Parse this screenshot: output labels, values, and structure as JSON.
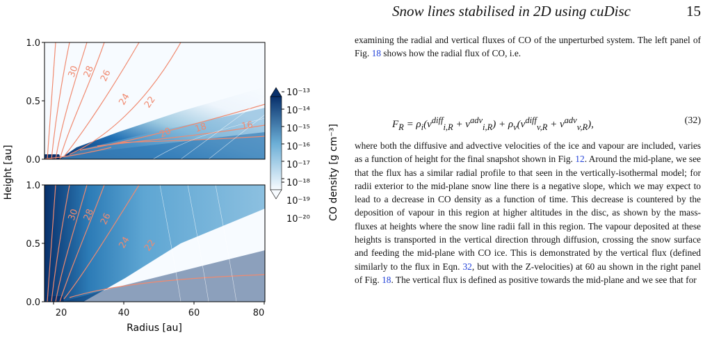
{
  "header": {
    "title": "Snow lines stabilised in 2D using cuDisc",
    "page_number": "15"
  },
  "figure": {
    "x_label": "Radius [au]",
    "y_label": "Height [au]",
    "colorbar_label": "CO density [g cm⁻³]",
    "x_ticks": [
      "20",
      "40",
      "60",
      "80"
    ],
    "top_y_ticks": [
      "0.0",
      "0.5",
      "1.0"
    ],
    "bottom_y_ticks": [
      "0.0",
      "0.5",
      "1.0"
    ],
    "colorbar_ticks": [
      "10⁻¹³",
      "10⁻¹⁴",
      "10⁻¹⁵",
      "10⁻¹⁶",
      "10⁻¹⁷",
      "10⁻¹⁸",
      "10⁻¹⁹",
      "10⁻²⁰"
    ],
    "top_contour_labels": [
      "30",
      "28",
      "26",
      "24",
      "22",
      "20",
      "18",
      "16"
    ],
    "bottom_contour_labels": [
      "30",
      "28",
      "26",
      "24",
      "22"
    ],
    "colors": {
      "dark": "#08306b",
      "mid": "#4292c6",
      "light": "#f7fbff",
      "contour": "#f08a70"
    }
  },
  "body": {
    "para1": "examining the radial and vertical fluxes of CO of the unperturbed system. The left panel of Fig. 18 shows how the radial flux of CO, i.e.",
    "equation_number": "(32)",
    "para2_a": "where both the diffusive and advective velocities of the ice and vapour are included, varies as a function of height for the final snapshot shown in Fig. ",
    "ref_fig12": "12",
    "para2_b": ". Around the mid-plane, we see that the flux has a similar radial profile to that seen in the vertically-isothermal model; for radii exterior to the mid-plane snow line there is a negative slope, which we may expect to lead to a decrease in CO density as a function of time. This decrease is countered by the deposition of vapour in this region at higher altitudes in the disc, as shown by the mass-fluxes at heights where the snow line radii fall in this region. The vapour deposited at these heights is transported in the vertical direction through diffusion, crossing the snow surface and feeding the mid-plane with CO ice. This is demonstrated by the vertical flux (defined similarly to the flux in Eqn. ",
    "ref_eqn32": "32",
    "para2_c": ", but with the Z-velocities) at 60 au shown in the right panel of Fig. ",
    "ref_fig18": "18",
    "para2_d": ". The vertical flux is defined as positive towards the mid-plane and we see that for",
    "ref_fig18_first": "18"
  }
}
